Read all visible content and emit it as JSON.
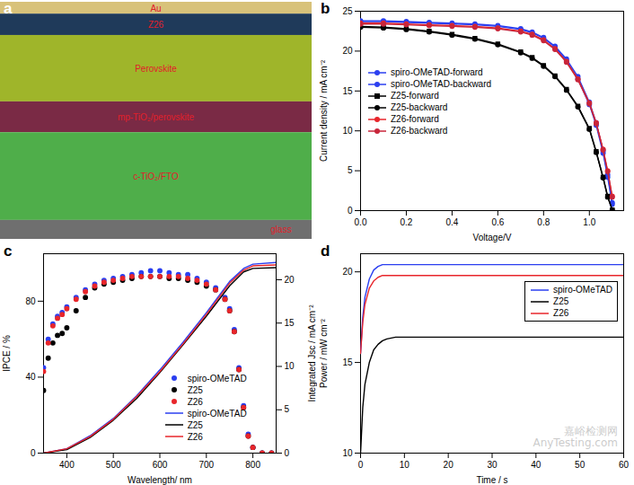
{
  "chart_data": [
    {
      "type": "layers",
      "title": "a",
      "categories": [
        "Au",
        "Z26",
        "Perovskite",
        "mp-TiO₂/perovskite",
        "c-TiO₂/FTO",
        "glass"
      ],
      "colors": [
        "#d8c27a",
        "#1f3a5a",
        "#9fb52a",
        "#7a2a45",
        "#4fae4a",
        "#6f6f6f"
      ]
    },
    {
      "type": "line",
      "title": "b",
      "x_label": "Voltage/V",
      "y_label": "Current density / mA cm⁻²",
      "x": [
        0,
        0.1,
        0.2,
        0.3,
        0.4,
        0.5,
        0.6,
        0.7,
        0.75,
        0.8,
        0.85,
        0.9,
        0.95,
        1.0,
        1.03,
        1.06,
        1.08,
        1.1
      ],
      "series": [
        {
          "name": "spiro-OMeTAD-forward",
          "color": "#2b3ff0",
          "marker": "circle",
          "values": [
            23.8,
            23.8,
            23.7,
            23.6,
            23.5,
            23.4,
            23.2,
            22.8,
            22.4,
            21.7,
            20.6,
            19.0,
            16.8,
            13.6,
            11.0,
            7.5,
            4.5,
            1.0
          ]
        },
        {
          "name": "spiro-OMeTAD-backward",
          "color": "#2b3ff0",
          "marker": "circle",
          "values": [
            23.7,
            23.7,
            23.6,
            23.5,
            23.4,
            23.3,
            23.1,
            22.7,
            22.3,
            21.6,
            20.5,
            18.8,
            16.5,
            13.3,
            10.7,
            7.2,
            4.2,
            0.8
          ]
        },
        {
          "name": "Z25-forward",
          "color": "#000000",
          "marker": "square",
          "values": [
            23.1,
            23.0,
            22.8,
            22.5,
            22.1,
            21.6,
            20.9,
            19.9,
            19.2,
            18.2,
            16.9,
            15.2,
            13.1,
            10.3,
            7.4,
            4.2,
            1.8,
            0.1
          ]
        },
        {
          "name": "Z25-backward",
          "color": "#000000",
          "marker": "circle",
          "values": [
            23.0,
            22.9,
            22.7,
            22.4,
            22.0,
            21.5,
            20.8,
            19.8,
            19.1,
            18.1,
            16.8,
            15.1,
            13.0,
            10.2,
            7.3,
            4.1,
            1.7,
            0.1
          ]
        },
        {
          "name": "Z26-forward",
          "color": "#e8262b",
          "marker": "circle",
          "values": [
            23.5,
            23.5,
            23.4,
            23.3,
            23.2,
            23.1,
            22.9,
            22.5,
            22.1,
            21.4,
            20.3,
            18.7,
            16.5,
            13.5,
            11.0,
            7.7,
            5.0,
            1.8
          ]
        },
        {
          "name": "Z26-backward",
          "color": "#c8263b",
          "marker": "circle",
          "values": [
            23.4,
            23.4,
            23.3,
            23.2,
            23.1,
            23.0,
            22.8,
            22.4,
            22.0,
            21.3,
            20.2,
            18.6,
            16.4,
            13.4,
            10.9,
            7.6,
            4.9,
            1.7
          ]
        }
      ],
      "xlim": [
        0,
        1.15
      ],
      "xticks": [
        {
          "value": 0,
          "label": "0.0"
        },
        0.2,
        0.4,
        0.6,
        0.8,
        {
          "value": 1,
          "label": "1.0"
        }
      ],
      "ylim": [
        0,
        25
      ],
      "yticks": [
        0,
        5,
        10,
        15,
        20,
        25
      ],
      "legend": "center left"
    },
    {
      "type": "line",
      "title": "c",
      "x_label": "Wavelength/ nm",
      "y_label": "IPCE / %",
      "y2_label": "Integrated Jsc / mA cm⁻²",
      "series": [
        {
          "name": "spiro-OMeTAD",
          "type": "scatter",
          "color": "#2b3ff0",
          "marker": "circle",
          "x": [
            350,
            360,
            370,
            380,
            390,
            400,
            420,
            440,
            460,
            480,
            500,
            520,
            540,
            560,
            580,
            600,
            620,
            640,
            660,
            680,
            700,
            720,
            740,
            750,
            760,
            770,
            780,
            790,
            800,
            820,
            840
          ],
          "values": [
            45,
            60,
            68,
            72,
            74,
            77,
            82,
            86,
            89,
            91,
            92,
            93,
            94,
            95,
            96,
            96,
            95,
            94,
            94,
            92,
            90,
            87,
            82,
            76,
            65,
            45,
            25,
            10,
            3,
            0,
            0
          ]
        },
        {
          "name": "Z25",
          "type": "scatter",
          "color": "#000000",
          "marker": "circle",
          "x": [
            350,
            360,
            370,
            380,
            390,
            400,
            420,
            440,
            460,
            480,
            500,
            520,
            540,
            560,
            580,
            600,
            620,
            640,
            660,
            680,
            700,
            720,
            740,
            750,
            760,
            770,
            780,
            790,
            800,
            820,
            840
          ],
          "values": [
            33,
            50,
            58,
            62,
            63,
            66,
            75,
            82,
            87,
            89,
            90,
            91,
            92,
            93,
            93,
            93,
            92,
            92,
            91,
            90,
            88,
            86,
            81,
            75,
            64,
            44,
            24,
            9,
            3,
            0,
            0
          ]
        },
        {
          "name": "Z26",
          "type": "scatter",
          "color": "#e8262b",
          "marker": "circle",
          "x": [
            350,
            360,
            370,
            380,
            390,
            400,
            420,
            440,
            460,
            480,
            500,
            520,
            540,
            560,
            580,
            600,
            620,
            640,
            660,
            680,
            700,
            720,
            740,
            750,
            760,
            770,
            780,
            790,
            800,
            820,
            840
          ],
          "values": [
            43,
            58,
            67,
            71,
            73,
            76,
            81,
            85,
            88,
            90,
            91,
            92,
            93,
            93,
            93,
            93,
            93,
            93,
            92,
            91,
            89,
            86,
            81,
            75,
            64,
            44,
            24,
            9,
            3,
            0,
            0
          ]
        },
        {
          "name": "spiro-OMeTAD",
          "type": "line",
          "axis": "y2",
          "color": "#2b3ff0",
          "line_style": "solid",
          "x": [
            350,
            400,
            450,
            500,
            550,
            600,
            650,
            700,
            750,
            780,
            800,
            850
          ],
          "values": [
            0,
            0.5,
            2.0,
            4.0,
            6.6,
            9.6,
            12.8,
            16.2,
            19.8,
            21.3,
            21.8,
            22.0
          ]
        },
        {
          "name": "Z25",
          "type": "line",
          "axis": "y2",
          "color": "#000000",
          "line_style": "solid",
          "x": [
            350,
            400,
            450,
            500,
            550,
            600,
            650,
            700,
            750,
            780,
            800,
            850
          ],
          "values": [
            0,
            0.4,
            1.8,
            3.8,
            6.3,
            9.3,
            12.5,
            15.8,
            19.3,
            20.9,
            21.3,
            21.4
          ]
        },
        {
          "name": "Z26",
          "type": "line",
          "axis": "y2",
          "color": "#e8262b",
          "line_style": "solid",
          "x": [
            350,
            400,
            450,
            500,
            550,
            600,
            650,
            700,
            750,
            780,
            800,
            850
          ],
          "values": [
            0,
            0.5,
            1.9,
            3.9,
            6.5,
            9.4,
            12.6,
            16.0,
            19.6,
            21.1,
            21.6,
            21.7
          ]
        }
      ],
      "xlim": [
        350,
        850
      ],
      "xticks": [
        400,
        500,
        600,
        700,
        800
      ],
      "ylim": [
        0,
        105
      ],
      "yticks": [
        0,
        40,
        80
      ],
      "y2lim": [
        0,
        23
      ],
      "y2ticks": [
        0,
        5,
        10,
        15,
        20
      ],
      "legend": "bottom center"
    },
    {
      "type": "line",
      "title": "d",
      "x_label": "Time / s",
      "y_label": "Power / mW cm⁻²",
      "x": [
        0,
        0.5,
        1,
        2,
        3,
        4,
        5,
        6,
        8,
        10,
        60
      ],
      "series": [
        {
          "name": "spiro-OMeTAD",
          "color": "#2b3ff0",
          "values": [
            15.5,
            17.5,
            18.6,
            19.6,
            20.1,
            20.3,
            20.4,
            20.4,
            20.4,
            20.4,
            20.4
          ]
        },
        {
          "name": "Z25",
          "color": "#000000",
          "values": [
            10,
            12.5,
            13.8,
            15.0,
            15.7,
            16.0,
            16.2,
            16.3,
            16.4,
            16.4,
            16.4
          ]
        },
        {
          "name": "Z26",
          "color": "#e8262b",
          "values": [
            15.5,
            17.2,
            18.2,
            19.1,
            19.5,
            19.7,
            19.8,
            19.8,
            19.8,
            19.8,
            19.8
          ]
        }
      ],
      "xlim": [
        0,
        60
      ],
      "xticks": [
        0,
        10,
        20,
        30,
        40,
        50,
        60
      ],
      "ylim": [
        10,
        21
      ],
      "yticks": [
        10,
        15,
        20
      ],
      "legend": "center right",
      "annotations": [
        "嘉峪检测网",
        "AnyTesting.com"
      ]
    }
  ]
}
